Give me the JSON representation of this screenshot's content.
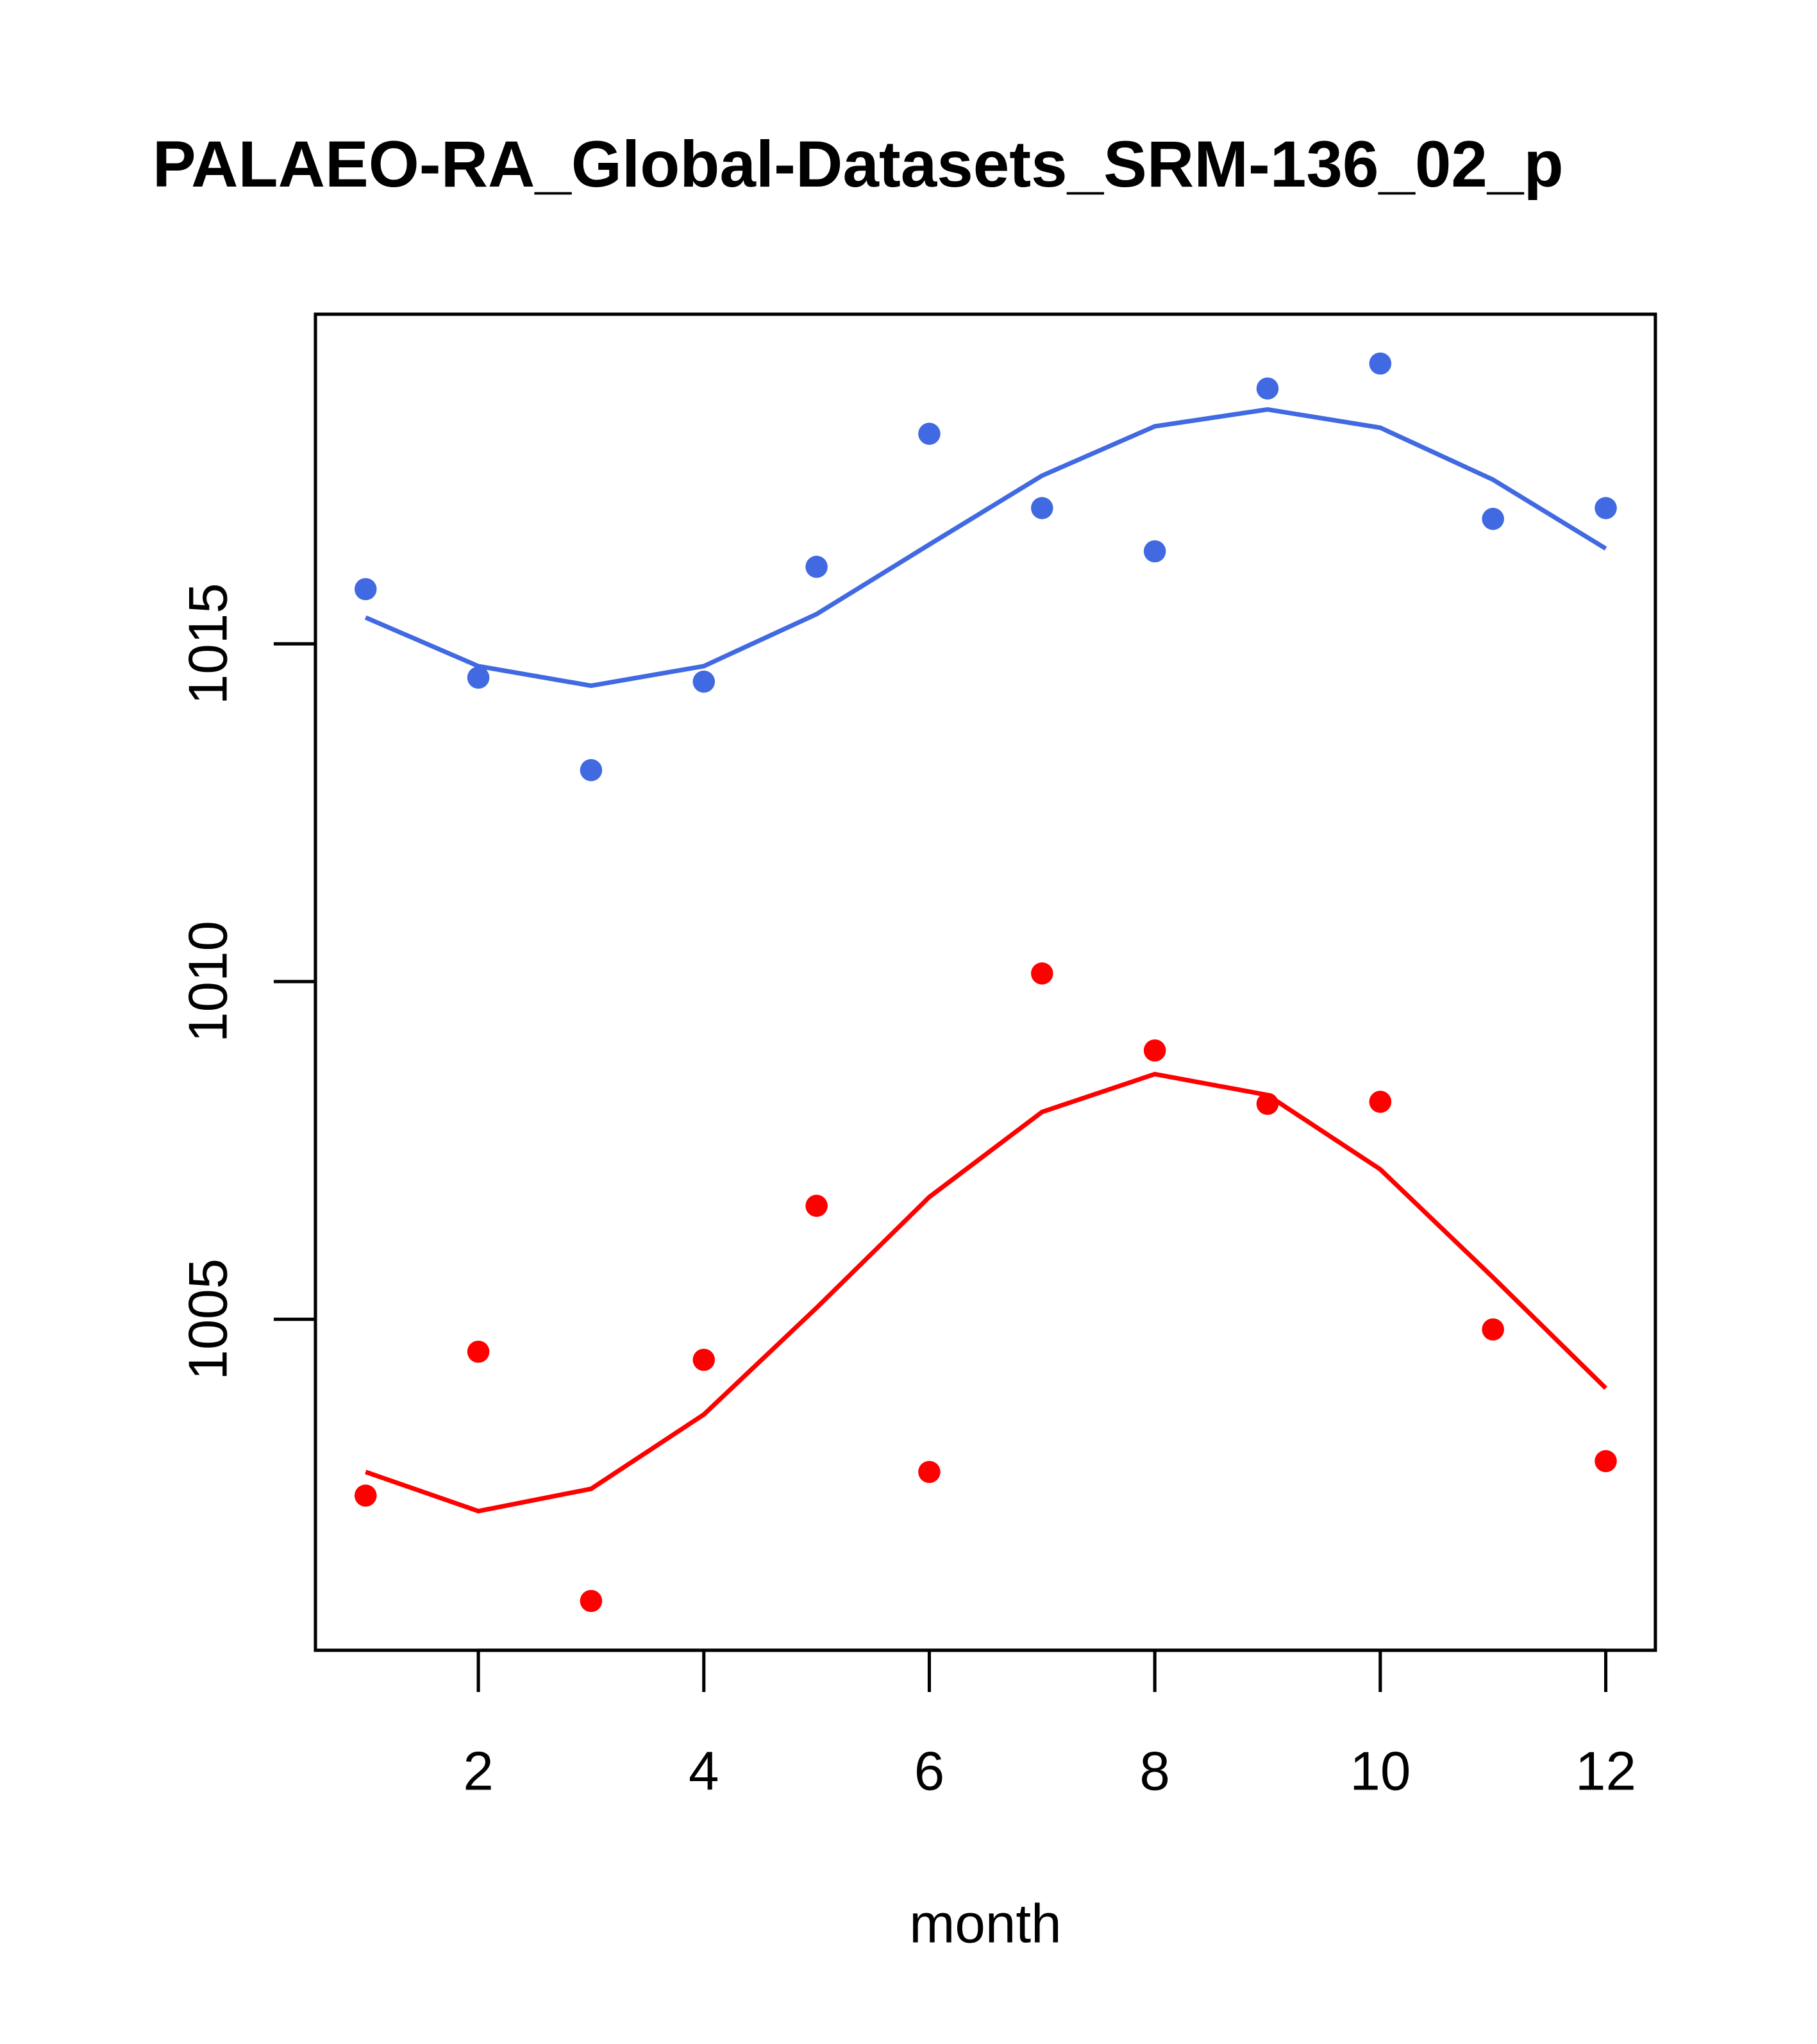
{
  "chart_data": {
    "type": "scatter",
    "title": "PALAEO-RA_Global-Datasets_SRM-136_02_p",
    "xlabel": "month",
    "ylabel": "",
    "xlim": [
      0.555,
      12.44
    ],
    "ylim": [
      1000.1,
      1019.88
    ],
    "x_ticks": [
      2,
      4,
      6,
      8,
      10,
      12
    ],
    "x_tick_labels": [
      "2",
      "4",
      "6",
      "8",
      "10",
      "12"
    ],
    "y_ticks": [
      1005,
      1010,
      1015
    ],
    "y_tick_labels": [
      "1005",
      "1010",
      "1015"
    ],
    "grid": false,
    "x": [
      1,
      2,
      3,
      4,
      5,
      6,
      7,
      8,
      9,
      10,
      11,
      12
    ],
    "series": [
      {
        "name": "blue",
        "color": "#4169E1",
        "points": [
          1015.81,
          1014.5,
          1013.13,
          1014.44,
          1016.14,
          1018.11,
          1017.01,
          1016.37,
          1018.78,
          1019.15,
          1016.85,
          1017.01
        ],
        "line": [
          1015.39,
          1014.67,
          1014.38,
          1014.67,
          1015.44,
          1016.47,
          1017.49,
          1018.22,
          1018.47,
          1018.2,
          1017.43,
          1016.41
        ]
      },
      {
        "name": "red",
        "color": "#FF0000",
        "points": [
          1002.39,
          1004.52,
          1000.83,
          1004.4,
          1006.68,
          1002.74,
          1010.12,
          1008.98,
          1008.19,
          1008.22,
          1004.85,
          1002.9
        ],
        "line": [
          1002.74,
          1002.16,
          1002.49,
          1003.59,
          1005.17,
          1006.81,
          1008.07,
          1008.63,
          1008.32,
          1007.22,
          1005.62,
          1003.98
        ]
      }
    ]
  }
}
